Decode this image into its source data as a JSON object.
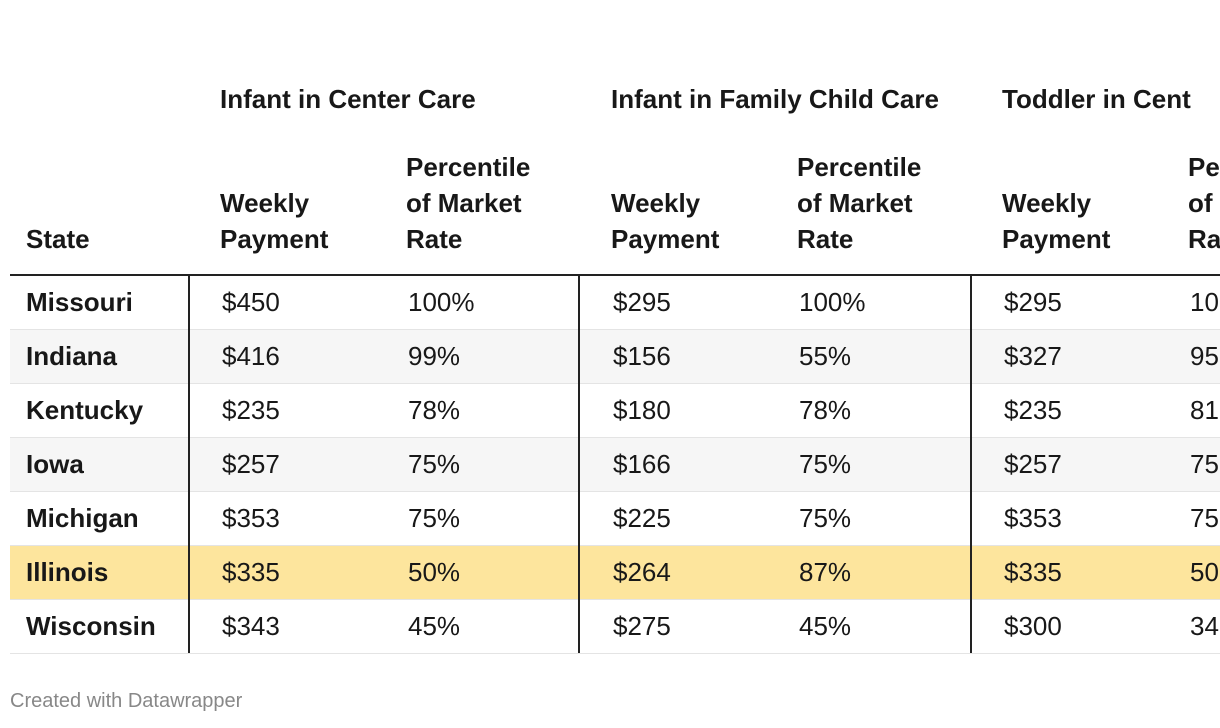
{
  "header": {
    "group_headers": [
      "Infant in Center Care",
      "Infant in Family Child Care",
      "Toddler in Cent"
    ],
    "columns": [
      "State",
      "Weekly Payment",
      "Percentile of Market Rate",
      "Weekly Payment",
      "Percentile of Market Rate",
      "Weekly Payment",
      "Pe of Ra"
    ]
  },
  "table": {
    "rows": [
      [
        "Missouri",
        "$450",
        "100%",
        "$295",
        "100%",
        "$295",
        "10"
      ],
      [
        "Indiana",
        "$416",
        "99%",
        "$156",
        "55%",
        "$327",
        "95"
      ],
      [
        "Kentucky",
        "$235",
        "78%",
        "$180",
        "78%",
        "$235",
        "81"
      ],
      [
        "Iowa",
        "$257",
        "75%",
        "$166",
        "75%",
        "$257",
        "75"
      ],
      [
        "Michigan",
        "$353",
        "75%",
        "$225",
        "75%",
        "$353",
        "75"
      ],
      [
        "Illinois",
        "$335",
        "50%",
        "$264",
        "87%",
        "$335",
        "50"
      ],
      [
        "Wisconsin",
        "$343",
        "45%",
        "$275",
        "45%",
        "$300",
        "34"
      ]
    ]
  },
  "footer": "Created with Datawrapper"
}
